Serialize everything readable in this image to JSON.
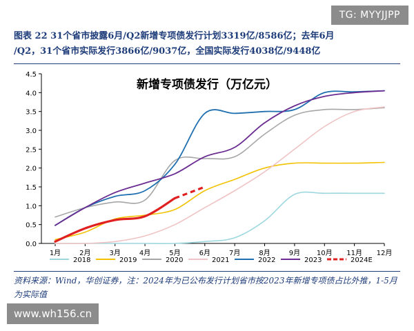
{
  "figure": {
    "title_line1": "图表 22   31个省市披露6月/Q2新增专项债发行计划3319亿/8586亿；去年6月",
    "title_line2": "/Q2，31个省市实际发行3866亿/9037亿，全国实际发行4038亿/9448亿",
    "source": "资料来源：Wind，华创证券，注：2024年为已公布发行计划省市按2023年新增专项债占比外推，1-5月为实际值"
  },
  "watermarks": {
    "top_right": "TG: MYYJJPP",
    "bottom_left": "www.wh156.cn"
  },
  "chart_data": {
    "type": "line",
    "title": "新增专项债发行（万亿元）",
    "xlabel": "",
    "ylabel": "",
    "categories": [
      "1月",
      "2月",
      "3月",
      "4月",
      "5月",
      "6月",
      "7月",
      "8月",
      "9月",
      "10月",
      "11月",
      "12月"
    ],
    "ylim": [
      0,
      4.5
    ],
    "yticks": [
      "0.0",
      "0.5",
      "1.0",
      "1.5",
      "2.0",
      "2.5",
      "3.0",
      "3.5",
      "4.0",
      "4.5"
    ],
    "grid": false,
    "legend_position": "bottom",
    "series": [
      {
        "name": "2018",
        "color": "#9ed8df",
        "dashed": false,
        "width": 1.6,
        "values": [
          0.0,
          0.0,
          0.0,
          0.0,
          0.0,
          0.05,
          0.15,
          0.6,
          1.3,
          1.33,
          1.33,
          1.33
        ]
      },
      {
        "name": "2019",
        "color": "#f2c200",
        "dashed": false,
        "width": 1.6,
        "values": [
          0.1,
          0.3,
          0.65,
          0.75,
          0.9,
          1.4,
          1.7,
          2.0,
          2.13,
          2.13,
          2.13,
          2.15
        ]
      },
      {
        "name": "2020",
        "color": "#a6a6a6",
        "dashed": false,
        "width": 1.6,
        "values": [
          0.7,
          0.95,
          1.1,
          1.15,
          2.2,
          2.25,
          2.3,
          2.9,
          3.4,
          3.55,
          3.55,
          3.6
        ]
      },
      {
        "name": "2021",
        "color": "#efc3c3",
        "dashed": false,
        "width": 1.6,
        "values": [
          0.0,
          0.0,
          0.05,
          0.2,
          0.5,
          0.95,
          1.4,
          1.9,
          2.5,
          3.1,
          3.5,
          3.62
        ]
      },
      {
        "name": "2022",
        "color": "#1f6fb0",
        "dashed": false,
        "width": 1.8,
        "values": [
          0.48,
          0.95,
          1.25,
          1.4,
          2.1,
          3.45,
          3.45,
          3.5,
          3.55,
          4.0,
          4.02,
          4.05
        ]
      },
      {
        "name": "2023",
        "color": "#6a2c91",
        "dashed": false,
        "width": 1.8,
        "values": [
          0.48,
          0.95,
          1.35,
          1.6,
          1.85,
          2.3,
          2.55,
          3.2,
          3.65,
          3.9,
          4.0,
          4.05
        ]
      },
      {
        "name": "2024E",
        "color": "#e02020",
        "dashed": true,
        "width": 3.2,
        "values": [
          0.05,
          0.4,
          0.62,
          0.72,
          1.2,
          1.5,
          null,
          null,
          null,
          null,
          null,
          null
        ],
        "solid_until_index": 4
      }
    ]
  }
}
